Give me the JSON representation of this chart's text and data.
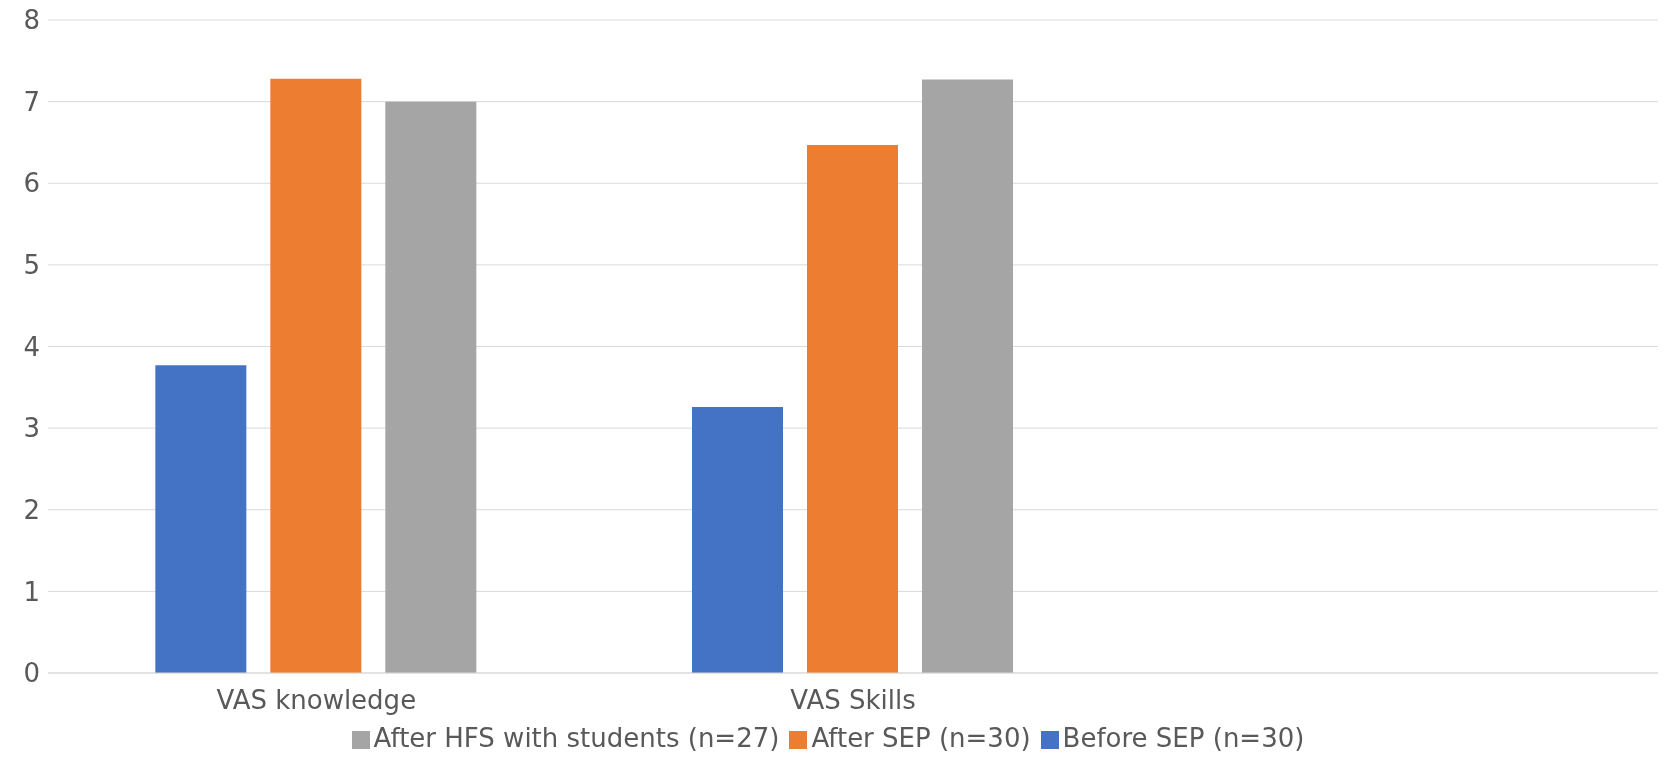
{
  "chart_data": {
    "type": "bar",
    "categories": [
      "VAS knowledge",
      "VAS Skills",
      null
    ],
    "series": [
      {
        "name": "Before SEP (n=30)",
        "color": "#4472c4",
        "values": [
          3.77,
          3.26,
          null
        ]
      },
      {
        "name": "After SEP (n=30)",
        "color": "#ed7d31",
        "values": [
          7.28,
          6.47,
          null
        ]
      },
      {
        "name": "After HFS with students (n=27)",
        "color": "#a5a5a5",
        "values": [
          7.0,
          7.27,
          null
        ]
      }
    ],
    "ylim": [
      0,
      8
    ],
    "yticks": [
      0,
      1,
      2,
      3,
      4,
      5,
      6,
      7,
      8
    ],
    "grid": "y",
    "legend": "bottom"
  }
}
